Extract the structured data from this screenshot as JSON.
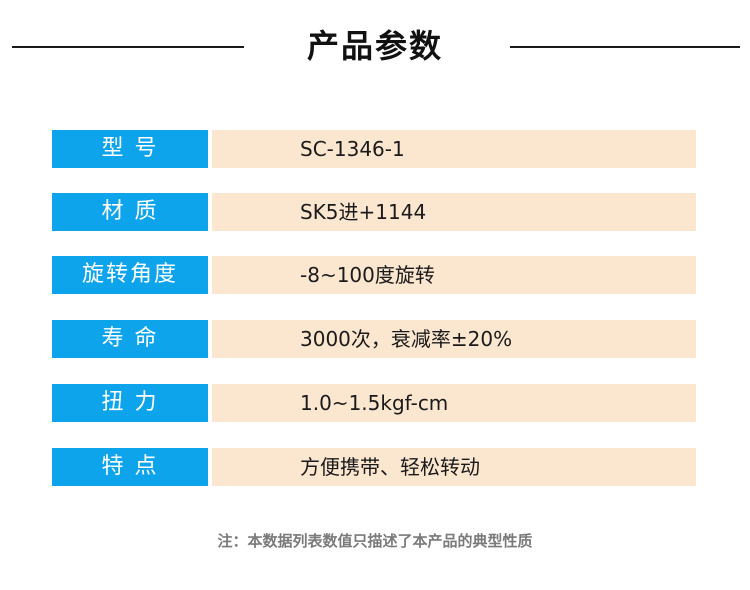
{
  "header": {
    "title": "产品参数"
  },
  "specs": [
    {
      "label": "型 号",
      "value": "SC-1346-1"
    },
    {
      "label": "材 质",
      "value": "SK5进+1144"
    },
    {
      "label": "旋转角度",
      "value": "-8~100度旋转"
    },
    {
      "label": "寿 命",
      "value": "3000次，衰减率±20%"
    },
    {
      "label": "扭 力",
      "value": "1.0~1.5kgf-cm"
    },
    {
      "label": "特 点",
      "value": "方便携带、轻松转动"
    }
  ],
  "footer": {
    "note": "注：本数据列表数值只描述了本产品的典型性质"
  },
  "colors": {
    "label_bg": "#0ea4ec",
    "value_bg": "#fbe6d0"
  }
}
